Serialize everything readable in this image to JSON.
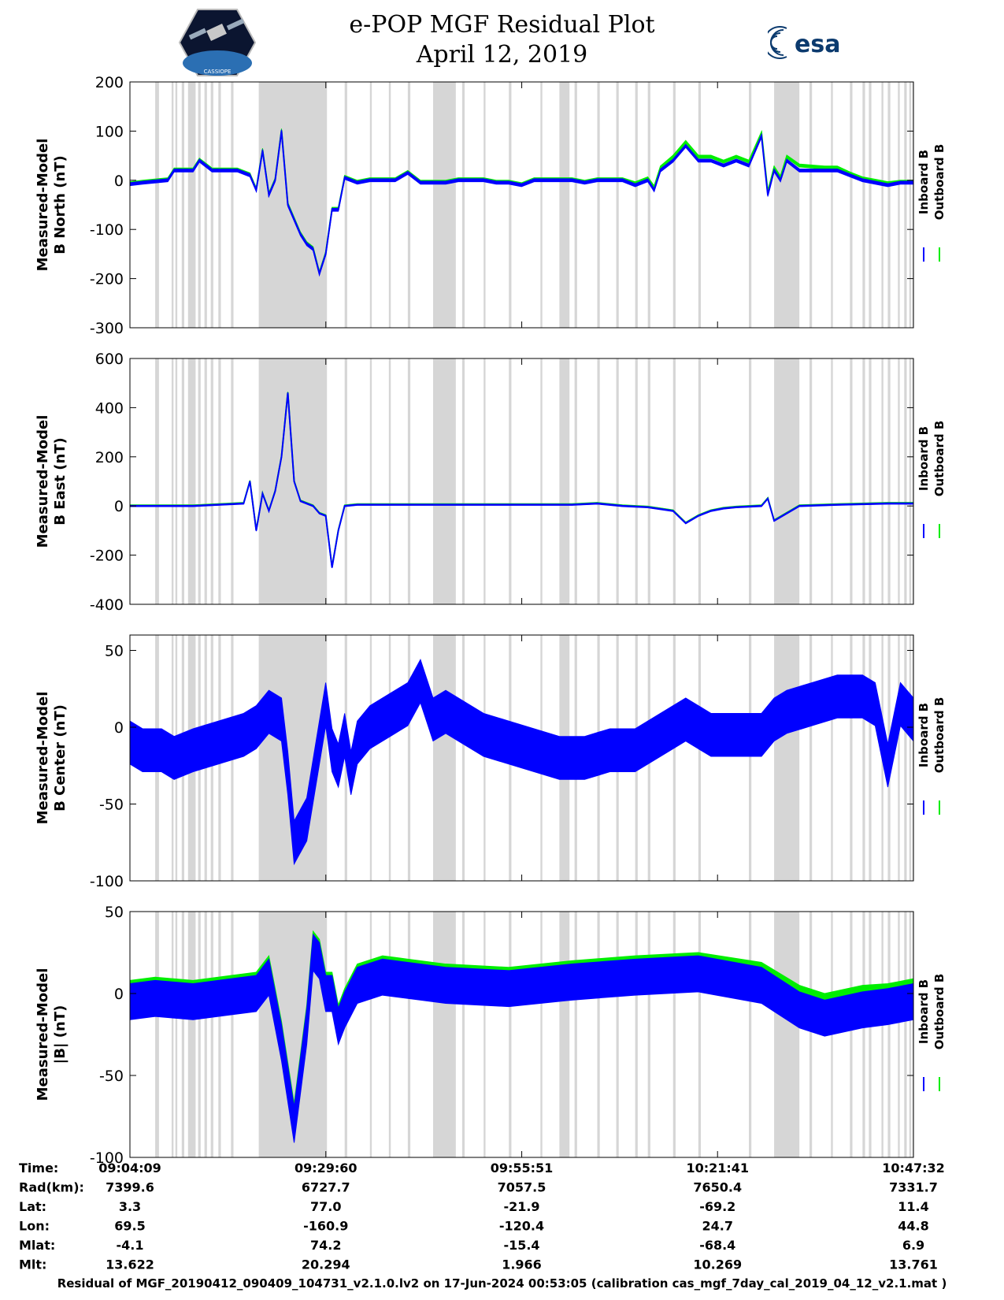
{
  "header": {
    "title_line1": "e-POP MGF Residual Plot",
    "title_line2": "April 12, 2019",
    "logo_left": "cassiope-mission-logo",
    "logo_left_text": "CASSIOPE",
    "logo_right": "esa-logo",
    "logo_right_text": "esa"
  },
  "colors": {
    "inboard": "#0000ff",
    "outboard": "#00ee00",
    "shading": "#d6d6d6",
    "axis": "#000000"
  },
  "chart_data": [
    {
      "type": "line",
      "title": "",
      "ylabel_line1": "Measured-Model",
      "ylabel_line2": "B North (nT)",
      "ylim": [
        -300,
        200
      ],
      "yticks": [
        200,
        100,
        0,
        -100,
        -200,
        -300
      ],
      "xlim": [
        0,
        6203
      ],
      "xticks": [
        0,
        1551,
        3102,
        4652,
        6203
      ],
      "legend": [
        "Inboard B",
        "Outboard B"
      ],
      "legend_position": "right",
      "series": [
        {
          "name": "Inboard B",
          "band": 6,
          "x": [
            0,
            100,
            300,
            350,
            500,
            550,
            650,
            850,
            950,
            1000,
            1050,
            1100,
            1150,
            1200,
            1250,
            1300,
            1350,
            1400,
            1450,
            1500,
            1550,
            1600,
            1650,
            1700,
            1800,
            1900,
            2000,
            2100,
            2200,
            2300,
            2400,
            2500,
            2600,
            2700,
            2800,
            2900,
            3000,
            3100,
            3200,
            3300,
            3400,
            3500,
            3600,
            3700,
            3800,
            3900,
            4000,
            4100,
            4150,
            4200,
            4300,
            4400,
            4500,
            4600,
            4700,
            4800,
            4900,
            5000,
            5050,
            5100,
            5150,
            5200,
            5300,
            5400,
            5500,
            5600,
            5700,
            5800,
            5900,
            6000,
            6100,
            6203
          ],
          "values": [
            -8,
            -5,
            0,
            20,
            20,
            40,
            20,
            20,
            10,
            -20,
            60,
            -30,
            0,
            100,
            -50,
            -80,
            -110,
            -130,
            -140,
            -190,
            -150,
            -60,
            -60,
            5,
            -5,
            0,
            0,
            0,
            15,
            -5,
            -5,
            -5,
            0,
            0,
            0,
            -5,
            -5,
            -10,
            0,
            0,
            0,
            0,
            -5,
            0,
            0,
            0,
            -10,
            0,
            -20,
            20,
            40,
            70,
            40,
            40,
            30,
            40,
            30,
            90,
            -30,
            20,
            0,
            40,
            20,
            20,
            20,
            20,
            10,
            0,
            -5,
            -10,
            -5,
            -5
          ]
        },
        {
          "name": "Outboard B",
          "band": 6,
          "x": [
            0,
            100,
            300,
            350,
            500,
            550,
            650,
            850,
            950,
            1000,
            1050,
            1100,
            1150,
            1200,
            1250,
            1300,
            1350,
            1400,
            1450,
            1500,
            1550,
            1600,
            1650,
            1700,
            1800,
            1900,
            2000,
            2100,
            2200,
            2300,
            2400,
            2500,
            2600,
            2700,
            2800,
            2900,
            3000,
            3100,
            3200,
            3300,
            3400,
            3500,
            3600,
            3700,
            3800,
            3900,
            4000,
            4100,
            4150,
            4200,
            4300,
            4400,
            4500,
            4600,
            4700,
            4800,
            4900,
            5000,
            5050,
            5100,
            5150,
            5200,
            5300,
            5400,
            5500,
            5600,
            5700,
            5800,
            5900,
            6000,
            6100,
            6203
          ],
          "values": [
            -6,
            -3,
            2,
            22,
            22,
            42,
            22,
            22,
            12,
            -18,
            62,
            -28,
            2,
            102,
            -48,
            -78,
            -108,
            -128,
            -138,
            -188,
            -148,
            -58,
            -58,
            7,
            -3,
            2,
            2,
            2,
            17,
            -3,
            -3,
            -3,
            2,
            2,
            2,
            -3,
            -3,
            -8,
            2,
            2,
            2,
            2,
            -3,
            2,
            2,
            2,
            -6,
            4,
            -14,
            26,
            48,
            78,
            48,
            48,
            38,
            48,
            38,
            96,
            -24,
            26,
            6,
            48,
            30,
            28,
            26,
            26,
            14,
            4,
            -1,
            -6,
            -3,
            -3
          ]
        }
      ]
    },
    {
      "type": "line",
      "title": "",
      "ylabel_line1": "Measured-Model",
      "ylabel_line2": "B East (nT)",
      "ylim": [
        -400,
        600
      ],
      "yticks": [
        600,
        400,
        200,
        0,
        -200,
        -400
      ],
      "xlim": [
        0,
        6203
      ],
      "xticks": [
        0,
        1551,
        3102,
        4652,
        6203
      ],
      "legend": [
        "Inboard B",
        "Outboard B"
      ],
      "legend_position": "right",
      "series": [
        {
          "name": "Inboard B",
          "band": 5,
          "x": [
            0,
            100,
            300,
            500,
            700,
            900,
            950,
            1000,
            1050,
            1100,
            1150,
            1200,
            1250,
            1300,
            1350,
            1400,
            1450,
            1500,
            1550,
            1600,
            1650,
            1700,
            1800,
            2000,
            2500,
            3000,
            3500,
            3700,
            3900,
            4100,
            4300,
            4400,
            4500,
            4600,
            4700,
            4800,
            5000,
            5050,
            5100,
            5300,
            5600,
            6000,
            6203
          ],
          "values": [
            0,
            0,
            0,
            0,
            5,
            10,
            100,
            -100,
            50,
            -20,
            60,
            200,
            460,
            100,
            20,
            10,
            0,
            -30,
            -40,
            -250,
            -100,
            0,
            5,
            5,
            5,
            5,
            5,
            10,
            0,
            -5,
            -20,
            -70,
            -40,
            -20,
            -10,
            -5,
            0,
            30,
            -60,
            0,
            5,
            10,
            10
          ]
        },
        {
          "name": "Outboard B",
          "band": 5,
          "x": [
            0,
            100,
            300,
            500,
            700,
            900,
            950,
            1000,
            1050,
            1100,
            1150,
            1200,
            1250,
            1300,
            1350,
            1400,
            1450,
            1500,
            1550,
            1600,
            1650,
            1700,
            1800,
            2000,
            2500,
            3000,
            3500,
            3700,
            3900,
            4100,
            4300,
            4400,
            4500,
            4600,
            4700,
            4800,
            5000,
            5050,
            5100,
            5300,
            5600,
            6000,
            6203
          ],
          "values": [
            2,
            2,
            2,
            2,
            7,
            12,
            102,
            -98,
            52,
            -18,
            62,
            202,
            462,
            102,
            22,
            12,
            2,
            -28,
            -38,
            -248,
            -98,
            2,
            7,
            7,
            7,
            7,
            7,
            12,
            2,
            -3,
            -18,
            -68,
            -38,
            -18,
            -8,
            -3,
            2,
            32,
            -58,
            2,
            7,
            12,
            12
          ]
        }
      ]
    },
    {
      "type": "line",
      "title": "",
      "ylabel_line1": "Measured-Model",
      "ylabel_line2": "B Center (nT)",
      "ylim": [
        -100,
        60
      ],
      "yticks": [
        50,
        0,
        -50,
        -100
      ],
      "xlim": [
        0,
        6203
      ],
      "xticks": [
        0,
        1551,
        3102,
        4652,
        6203
      ],
      "legend": [
        "Inboard B",
        "Outboard B"
      ],
      "legend_position": "right",
      "series": [
        {
          "name": "Inboard B",
          "band": 28,
          "x": [
            0,
            100,
            250,
            350,
            500,
            700,
            900,
            1000,
            1100,
            1200,
            1250,
            1300,
            1400,
            1500,
            1550,
            1600,
            1650,
            1700,
            1750,
            1800,
            1900,
            2000,
            2100,
            2200,
            2300,
            2400,
            2500,
            2600,
            2800,
            3000,
            3200,
            3400,
            3600,
            3800,
            4000,
            4200,
            4300,
            4400,
            4500,
            4600,
            4800,
            5000,
            5100,
            5200,
            5400,
            5600,
            5800,
            5900,
            6000,
            6100,
            6203
          ],
          "values": [
            -10,
            -15,
            -15,
            -20,
            -15,
            -10,
            -5,
            0,
            10,
            5,
            -30,
            -75,
            -60,
            -10,
            15,
            -15,
            -25,
            -5,
            -30,
            -10,
            0,
            5,
            10,
            15,
            30,
            5,
            10,
            5,
            -5,
            -10,
            -15,
            -20,
            -20,
            -15,
            -15,
            -5,
            0,
            5,
            0,
            -5,
            -5,
            -5,
            5,
            10,
            15,
            20,
            20,
            15,
            -25,
            15,
            5
          ]
        },
        {
          "name": "Outboard B",
          "band": 14,
          "x": [
            0,
            40,
            80
          ],
          "values": [
            -5,
            -10,
            -10
          ]
        }
      ]
    },
    {
      "type": "line",
      "title": "",
      "ylabel_line1": "Measured-Model",
      "ylabel_line2": "|B| (nT)",
      "ylim": [
        -100,
        50
      ],
      "yticks": [
        50,
        0,
        -50,
        -100
      ],
      "xlim": [
        0,
        6203
      ],
      "xticks": [
        0,
        1551,
        3102,
        4652,
        6203
      ],
      "legend": [
        "Inboard B",
        "Outboard B"
      ],
      "legend_position": "right",
      "series": [
        {
          "name": "Inboard B",
          "band": 22,
          "x": [
            0,
            200,
            500,
            800,
            1000,
            1100,
            1200,
            1300,
            1350,
            1400,
            1450,
            1500,
            1550,
            1600,
            1650,
            1700,
            1800,
            2000,
            2200,
            2500,
            3000,
            3500,
            4000,
            4500,
            5000,
            5300,
            5500,
            5800,
            6000,
            6203
          ],
          "values": [
            -5,
            -3,
            -5,
            -2,
            0,
            10,
            -30,
            -80,
            -50,
            -20,
            25,
            20,
            0,
            0,
            -20,
            -10,
            5,
            10,
            8,
            5,
            3,
            7,
            10,
            12,
            5,
            -10,
            -15,
            -10,
            -8,
            -5
          ]
        },
        {
          "name": "Outboard B",
          "band": 22,
          "x": [
            0,
            200,
            500,
            800,
            1000,
            1100,
            1200,
            1300,
            1350,
            1400,
            1450,
            1500,
            1550,
            1600,
            1650,
            1700,
            1800,
            2000,
            2200,
            2500,
            3000,
            3500,
            4000,
            4500,
            5000,
            5300,
            5500,
            5800,
            6000,
            6203
          ],
          "values": [
            -3,
            -1,
            -3,
            0,
            2,
            12,
            -28,
            -78,
            -48,
            -18,
            27,
            22,
            2,
            2,
            -18,
            -8,
            7,
            12,
            10,
            7,
            5,
            9,
            12,
            14,
            8,
            -6,
            -11,
            -6,
            -5,
            -2
          ]
        }
      ]
    }
  ],
  "shading_x": [
    [
      200,
      230
    ],
    [
      330,
      345
    ],
    [
      360,
      375
    ],
    [
      410,
      430
    ],
    [
      460,
      520
    ],
    [
      540,
      560
    ],
    [
      590,
      610
    ],
    [
      640,
      660
    ],
    [
      700,
      720
    ],
    [
      800,
      820
    ],
    [
      1020,
      1560
    ],
    [
      1700,
      1720
    ],
    [
      1900,
      1915
    ],
    [
      2050,
      2065
    ],
    [
      2200,
      2220
    ],
    [
      2400,
      2580
    ],
    [
      2630,
      2650
    ],
    [
      2800,
      2815
    ],
    [
      3000,
      3020
    ],
    [
      3250,
      3265
    ],
    [
      3400,
      3480
    ],
    [
      3520,
      3540
    ],
    [
      3700,
      3720
    ],
    [
      3850,
      3870
    ],
    [
      4000,
      4020
    ],
    [
      4100,
      4120
    ],
    [
      4300,
      4320
    ],
    [
      4500,
      4520
    ],
    [
      4900,
      4920
    ],
    [
      5100,
      5300
    ],
    [
      5380,
      5400
    ],
    [
      5550,
      5565
    ],
    [
      5700,
      5720
    ],
    [
      5800,
      5820
    ],
    [
      5850,
      5870
    ],
    [
      5950,
      5965
    ],
    [
      6000,
      6020
    ],
    [
      6080,
      6095
    ],
    [
      6130,
      6150
    ],
    [
      6170,
      6185
    ],
    [
      6195,
      6203
    ]
  ],
  "shading_x_scale_note": "",
  "info_table": {
    "row_labels": [
      "Time:",
      "Rad(km):",
      "Lat:",
      "Lon:",
      "Mlat:",
      "Mlt:"
    ],
    "columns": [
      [
        "09:04:09",
        "7399.6",
        "3.3",
        "69.5",
        "-4.1",
        "13.622"
      ],
      [
        "09:29:60",
        "6727.7",
        "77.0",
        "-160.9",
        "74.2",
        "20.294"
      ],
      [
        "09:55:51",
        "7057.5",
        "-21.9",
        "-120.4",
        "-15.4",
        "1.966"
      ],
      [
        "10:21:41",
        "7650.4",
        "-69.2",
        "24.7",
        "-68.4",
        "10.269"
      ],
      [
        "10:47:32",
        "7331.7",
        "11.4",
        "44.8",
        "6.9",
        "13.761"
      ]
    ]
  },
  "footer": "Residual of MGF_20190412_090409_104731_v2.1.0.lv2 on 17-Jun-2024 00:53:05 (calibration cas_mgf_7day_cal_2019_04_12_v2.1.mat )"
}
